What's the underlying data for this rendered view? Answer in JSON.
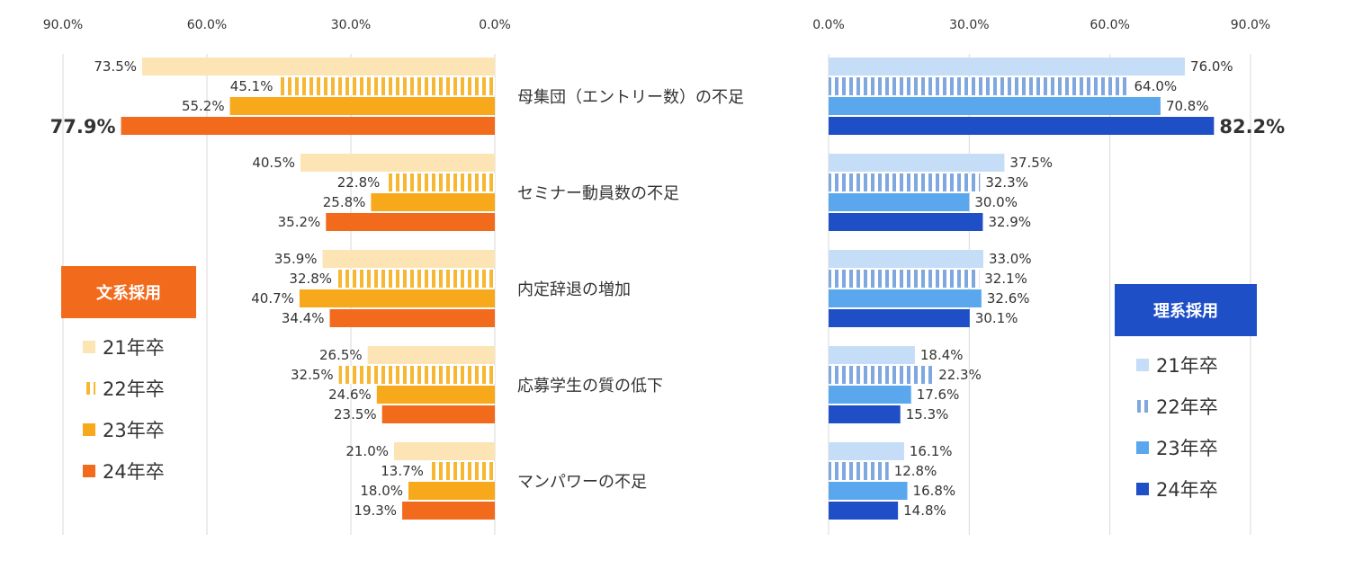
{
  "chart_data": [
    {
      "type": "bar",
      "orientation": "horizontal",
      "title": "文系採用",
      "direction": "right-to-left",
      "categories": [
        "母集団（エントリー数）の不足",
        "セミナー動員数の不足",
        "内定辞退の増加",
        "応募学生の質の低下",
        "マンパワーの不足"
      ],
      "axis_ticks": [
        "90.0%",
        "60.0%",
        "30.0%",
        "0.0%"
      ],
      "xlim": [
        0,
        90
      ],
      "series": [
        {
          "name": "21年卒",
          "color": "#FCE4B4",
          "pattern": "solid",
          "values": [
            73.5,
            40.5,
            35.9,
            26.5,
            21.0
          ],
          "labels": [
            "73.5%",
            "40.5%",
            "35.9%",
            "26.5%",
            "21.0%"
          ]
        },
        {
          "name": "22年卒",
          "color": "#F7B733",
          "pattern": "stripe",
          "values": [
            45.1,
            22.8,
            32.8,
            32.5,
            13.7
          ],
          "labels": [
            "45.1%",
            "22.8%",
            "32.8%",
            "32.5%",
            "13.7%"
          ]
        },
        {
          "name": "23年卒",
          "color": "#F7A81B",
          "pattern": "solid",
          "values": [
            55.2,
            25.8,
            40.7,
            24.6,
            18.0
          ],
          "labels": [
            "55.2%",
            "25.8%",
            "40.7%",
            "24.6%",
            "18.0%"
          ]
        },
        {
          "name": "24年卒",
          "color": "#F26B1D",
          "pattern": "solid",
          "values": [
            77.9,
            35.2,
            34.4,
            23.5,
            19.3
          ],
          "labels": [
            "77.9%",
            "35.2%",
            "34.4%",
            "23.5%",
            "19.3%"
          ]
        }
      ],
      "legend": {
        "placement": "left",
        "badge_color": "#F26B1D"
      }
    },
    {
      "type": "bar",
      "orientation": "horizontal",
      "title": "理系採用",
      "direction": "left-to-right",
      "categories": [
        "母集団（エントリー数）の不足",
        "セミナー動員数の不足",
        "内定辞退の増加",
        "応募学生の質の低下",
        "マンパワーの不足"
      ],
      "axis_ticks": [
        "0.0%",
        "30.0%",
        "60.0%",
        "90.0%"
      ],
      "xlim": [
        0,
        90
      ],
      "series": [
        {
          "name": "21年卒",
          "color": "#C5DDF7",
          "pattern": "solid",
          "values": [
            76.0,
            37.5,
            33.0,
            18.4,
            16.1
          ],
          "labels": [
            "76.0%",
            "37.5%",
            "33.0%",
            "18.4%",
            "16.1%"
          ]
        },
        {
          "name": "22年卒",
          "color": "#7FA7E0",
          "pattern": "stripe",
          "values": [
            64.0,
            32.3,
            32.1,
            22.3,
            12.8
          ],
          "labels": [
            "64.0%",
            "32.3%",
            "32.1%",
            "22.3%",
            "12.8%"
          ]
        },
        {
          "name": "23年卒",
          "color": "#5BA7EE",
          "pattern": "solid",
          "values": [
            70.8,
            30.0,
            32.6,
            17.6,
            16.8
          ],
          "labels": [
            "70.8%",
            "30.0%",
            "32.6%",
            "17.6%",
            "16.8%"
          ]
        },
        {
          "name": "24年卒",
          "color": "#1F4FC7",
          "pattern": "solid",
          "values": [
            82.2,
            32.9,
            30.1,
            15.3,
            14.8
          ],
          "labels": [
            "82.2%",
            "32.9%",
            "30.1%",
            "15.3%",
            "14.8%"
          ]
        }
      ],
      "legend": {
        "placement": "right",
        "badge_color": "#1F4FC7"
      }
    }
  ]
}
